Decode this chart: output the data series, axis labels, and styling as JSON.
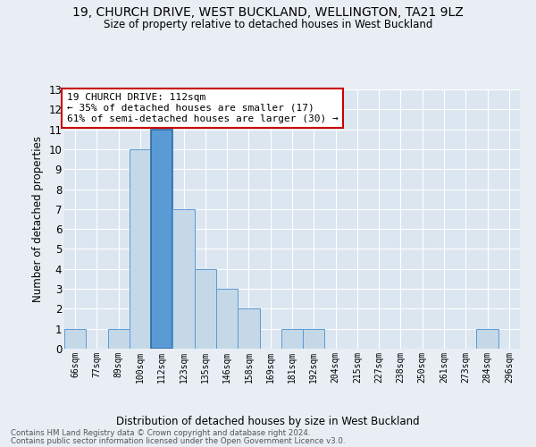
{
  "title": "19, CHURCH DRIVE, WEST BUCKLAND, WELLINGTON, TA21 9LZ",
  "subtitle": "Size of property relative to detached houses in West Buckland",
  "xlabel": "Distribution of detached houses by size in West Buckland",
  "ylabel": "Number of detached properties",
  "footnote1": "Contains HM Land Registry data © Crown copyright and database right 2024.",
  "footnote2": "Contains public sector information licensed under the Open Government Licence v3.0.",
  "annotation_line1": "19 CHURCH DRIVE: 112sqm",
  "annotation_line2": "← 35% of detached houses are smaller (17)",
  "annotation_line3": "61% of semi-detached houses are larger (30) →",
  "bar_labels": [
    "66sqm",
    "77sqm",
    "89sqm",
    "100sqm",
    "112sqm",
    "123sqm",
    "135sqm",
    "146sqm",
    "158sqm",
    "169sqm",
    "181sqm",
    "192sqm",
    "204sqm",
    "215sqm",
    "227sqm",
    "238sqm",
    "250sqm",
    "261sqm",
    "273sqm",
    "284sqm",
    "296sqm"
  ],
  "bar_values": [
    1,
    0,
    1,
    10,
    11,
    7,
    4,
    3,
    2,
    0,
    1,
    1,
    0,
    0,
    0,
    0,
    0,
    0,
    0,
    1,
    0
  ],
  "bar_color": "#c5d8e8",
  "bar_edge_color": "#5b9bd5",
  "highlight_bar_index": 4,
  "highlight_bar_color": "#5b9bd5",
  "highlight_bar_edge_color": "#2e6da4",
  "ylim": [
    0,
    13
  ],
  "yticks": [
    0,
    1,
    2,
    3,
    4,
    5,
    6,
    7,
    8,
    9,
    10,
    11,
    12,
    13
  ],
  "bg_color": "#e8eef4",
  "plot_bg_color": "#dce6f0",
  "grid_color": "#ffffff",
  "annotation_box_color": "#ffffff",
  "annotation_border_color": "#cc0000"
}
